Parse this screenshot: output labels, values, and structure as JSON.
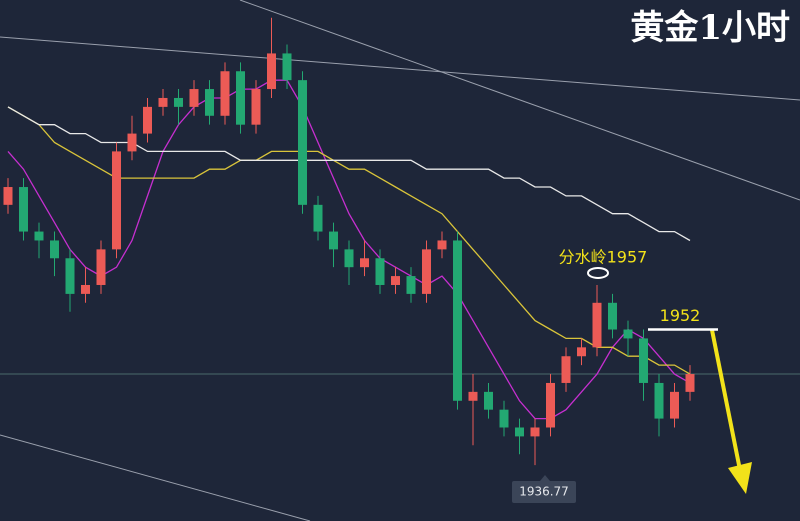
{
  "chart_data": {
    "type": "candlestick",
    "title": "黄金1小时",
    "open": [
      1966,
      1968,
      1963,
      1962,
      1960,
      1956,
      1957,
      1961,
      1972,
      1974,
      1977,
      1978,
      1977,
      1979,
      1976,
      1981,
      1975,
      1979,
      1983,
      1980,
      1966,
      1963,
      1961,
      1959,
      1960,
      1957,
      1958,
      1956,
      1961,
      1962,
      1944,
      1945,
      1943,
      1941,
      1940,
      1941,
      1946,
      1949,
      1950,
      1955,
      1952,
      1951,
      1946,
      1942,
      1945
    ],
    "high": [
      1969,
      1969,
      1964,
      1963,
      1961,
      1959,
      1962,
      1973,
      1976,
      1978,
      1979,
      1979,
      1980,
      1980,
      1982,
      1982,
      1980,
      1987,
      1984,
      1981,
      1967,
      1964,
      1962,
      1962,
      1961,
      1959,
      1959,
      1962,
      1963,
      1963,
      1947,
      1946,
      1944,
      1942,
      1942,
      1947,
      1950,
      1951,
      1957,
      1956,
      1953,
      1952,
      1947,
      1946,
      1948
    ],
    "low": [
      1965,
      1962,
      1960,
      1958,
      1954,
      1955,
      1956,
      1960,
      1971,
      1973,
      1976,
      1975,
      1976,
      1975,
      1975,
      1974,
      1974,
      1978,
      1979,
      1965,
      1962,
      1959,
      1957,
      1958,
      1956,
      1956,
      1955,
      1955,
      1960,
      1943,
      1939,
      1942,
      1940,
      1938,
      1936.77,
      1940,
      1945,
      1948,
      1949,
      1951,
      1949,
      1944,
      1940,
      1941,
      1944
    ],
    "close": [
      1968,
      1963,
      1962,
      1960,
      1956,
      1957,
      1961,
      1972,
      1974,
      1977,
      1978,
      1977,
      1979,
      1976,
      1981,
      1975,
      1979,
      1983,
      1980,
      1966,
      1963,
      1961,
      1959,
      1960,
      1957,
      1958,
      1956,
      1961,
      1962,
      1944,
      1945,
      1943,
      1941,
      1940,
      1941,
      1946,
      1949,
      1950,
      1955,
      1952,
      1951,
      1946,
      1942,
      1945,
      1947
    ],
    "up_color": "#ec5b56",
    "down_color": "#23a872",
    "series": [
      {
        "color": "#c62fd0",
        "values": [
          1972,
          1970,
          1967,
          1964,
          1961,
          1959,
          1958,
          1959,
          1962,
          1967,
          1972,
          1975,
          1977,
          1978,
          1978,
          1979,
          1979,
          1980,
          1980,
          1977,
          1973,
          1969,
          1965,
          1962,
          1960,
          1959,
          1958,
          1957,
          1958,
          1956,
          1953,
          1950,
          1947,
          1944,
          1942,
          1942,
          1943,
          1945,
          1947,
          1950,
          1952,
          1951,
          1949,
          1947,
          1946
        ]
      },
      {
        "color": "#d9c43a",
        "values": [
          1977,
          1976,
          1975,
          1973,
          1972,
          1971,
          1970,
          1969,
          1969,
          1969,
          1969,
          1969,
          1969,
          1970,
          1970,
          1971,
          1971,
          1972,
          1972,
          1972,
          1972,
          1971,
          1970,
          1970,
          1969,
          1968,
          1967,
          1966,
          1965,
          1963,
          1961,
          1959,
          1957,
          1955,
          1953,
          1952,
          1951,
          1951,
          1950,
          1950,
          1949,
          1949,
          1948,
          1948,
          1947
        ]
      },
      {
        "color": "#e8e8e8",
        "values": [
          1977,
          1976,
          1975,
          1975,
          1974,
          1974,
          1973,
          1973,
          1973,
          1972,
          1972,
          1972,
          1972,
          1972,
          1972,
          1971,
          1971,
          1971,
          1971,
          1971,
          1971,
          1971,
          1971,
          1971,
          1971,
          1971,
          1971,
          1970,
          1970,
          1970,
          1970,
          1970,
          1969,
          1969,
          1968,
          1968,
          1967,
          1967,
          1966,
          1965,
          1965,
          1964,
          1963,
          1963,
          1962
        ]
      }
    ],
    "annotations": [
      {
        "label": "分水岭1957",
        "value": 1957
      },
      {
        "label": "1952",
        "value": 1952
      },
      {
        "label": "1936.77",
        "value": 1936.77
      }
    ],
    "ylim": [
      1930.5,
      1989
    ]
  }
}
